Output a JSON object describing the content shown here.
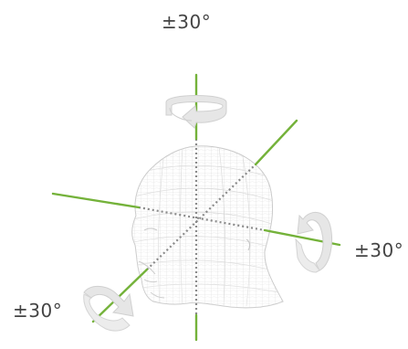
{
  "labels": {
    "top": "±30°",
    "right": "±30°",
    "bottom_left": "±30°"
  },
  "colors": {
    "axis": "#74b23a",
    "center_axis": "#8a8a8a",
    "wireframe": "#cfcfcf",
    "arrow": "#e3e3e3",
    "text": "#444444"
  },
  "icons": [
    "yaw-rotation-arrow-icon",
    "pitch-rotation-arrow-icon",
    "roll-rotation-arrow-icon"
  ]
}
